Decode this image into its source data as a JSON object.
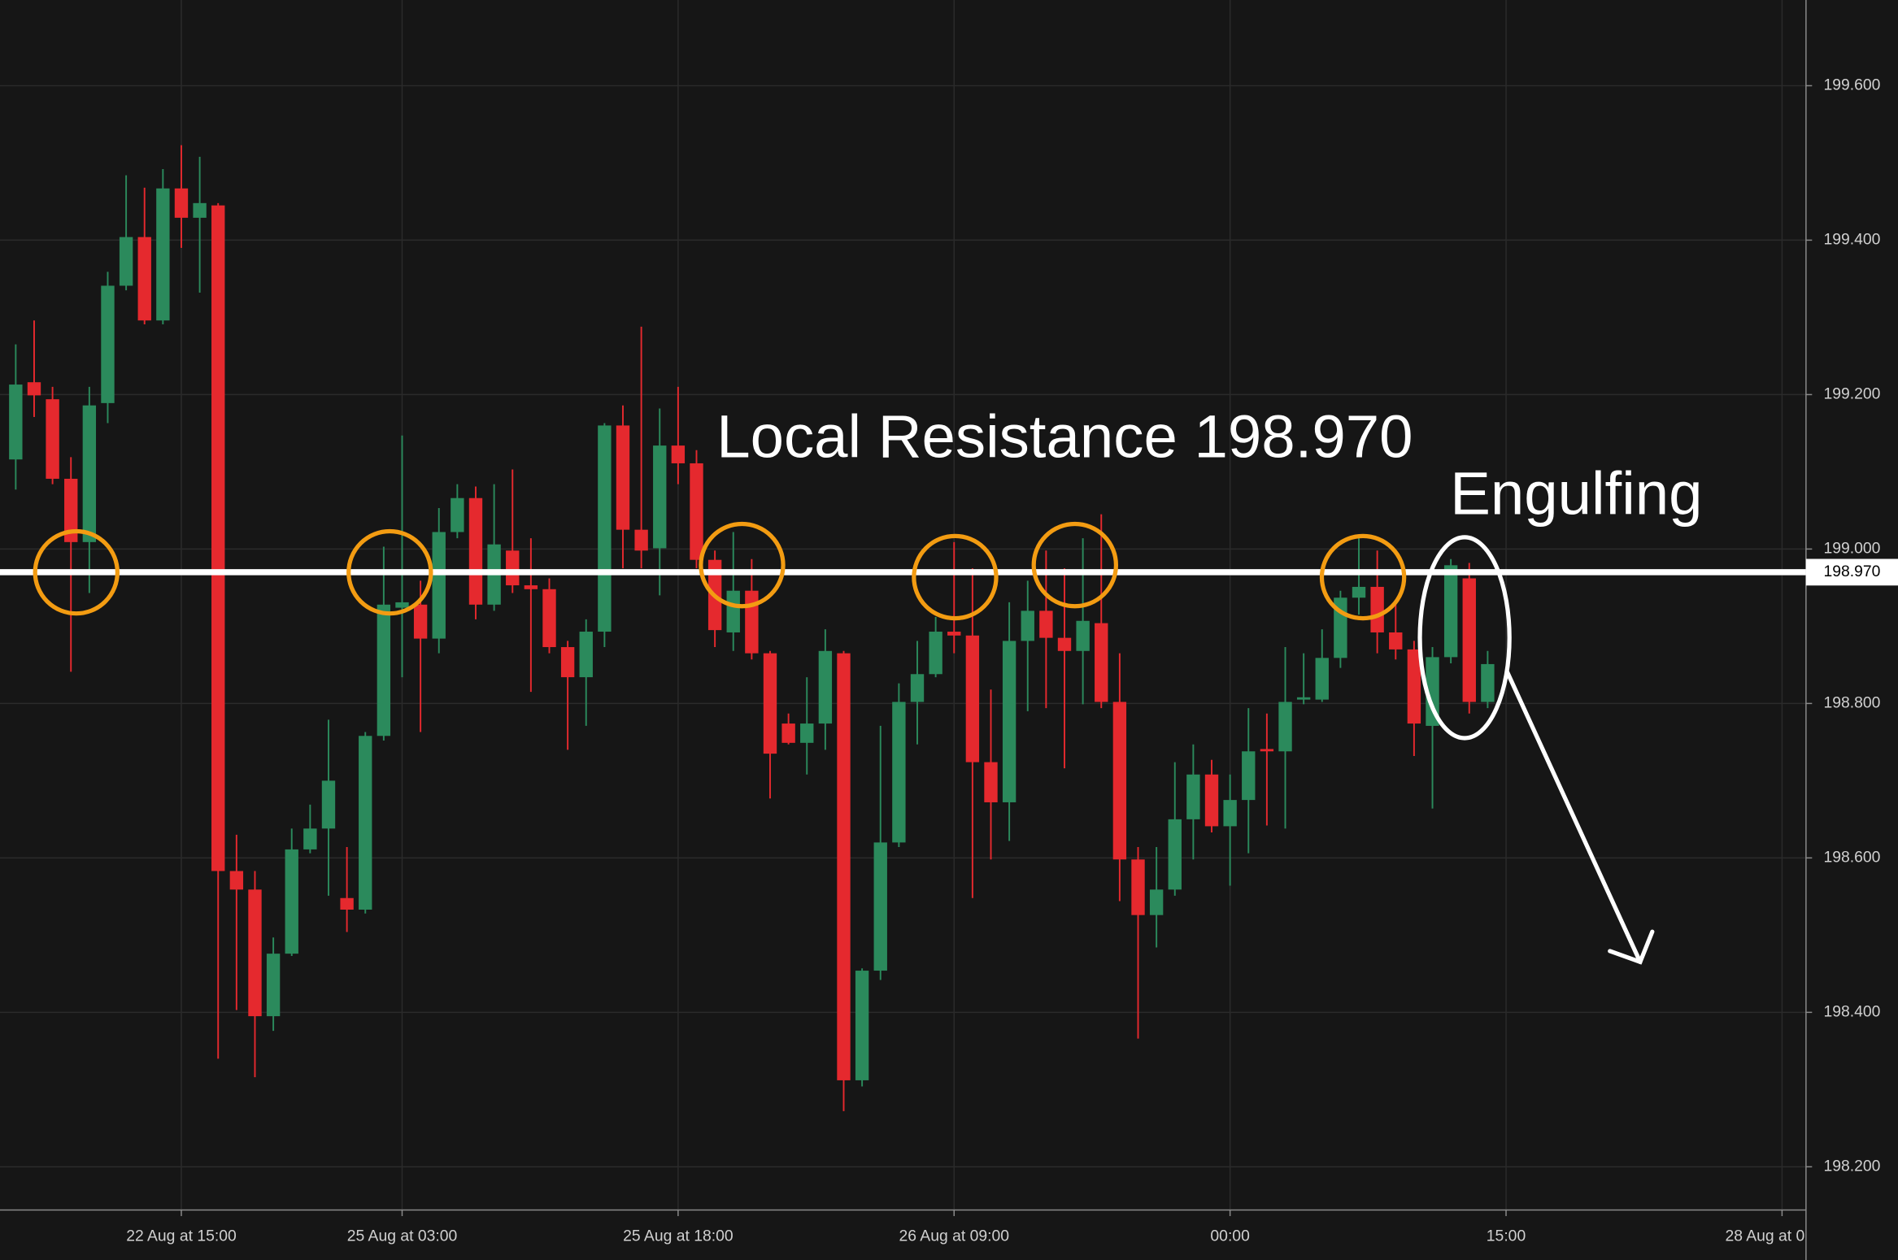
{
  "chart_data": {
    "type": "candlestick",
    "annotations": [
      "Local Resistance 198.970",
      "Engulfing"
    ],
    "hline": {
      "value": 198.97,
      "label": "198.970"
    },
    "up_color": "#2b8a5c",
    "down_color": "#e5292e",
    "grid": true,
    "ylim": [
      198.144,
      199.711
    ],
    "yticks": [
      {
        "value": 198.2,
        "label": "198.200"
      },
      {
        "value": 198.4,
        "label": "198.400"
      },
      {
        "value": 198.6,
        "label": "198.600"
      },
      {
        "value": 198.8,
        "label": "198.800"
      },
      {
        "value": 199.0,
        "label": "199.000"
      },
      {
        "value": 199.2,
        "label": "199.200"
      },
      {
        "value": 199.4,
        "label": "199.400"
      },
      {
        "value": 199.6,
        "label": "199.600"
      }
    ],
    "categories": [
      null,
      null,
      null,
      null,
      null,
      null,
      null,
      null,
      null,
      "22 Aug at 15:00",
      null,
      null,
      null,
      null,
      null,
      null,
      null,
      null,
      null,
      null,
      null,
      "25 Aug at 03:00",
      null,
      null,
      null,
      null,
      null,
      null,
      null,
      null,
      null,
      null,
      null,
      null,
      null,
      null,
      "25 Aug at 18:00",
      null,
      null,
      null,
      null,
      null,
      null,
      null,
      null,
      null,
      null,
      null,
      null,
      null,
      null,
      "26 Aug at 09:00",
      null,
      null,
      null,
      null,
      null,
      null,
      null,
      null,
      null,
      null,
      null,
      null,
      null,
      null,
      "00:00",
      null,
      null,
      null,
      null,
      null,
      null,
      null,
      null,
      null,
      null,
      null,
      null,
      null,
      null,
      "15:00",
      null,
      null,
      null,
      null,
      null,
      null,
      null,
      null,
      null,
      null,
      null,
      null,
      null,
      null,
      "28 Aug at 0"
    ],
    "open": [
      199.116,
      199.216,
      199.194,
      199.091,
      199.009,
      199.189,
      199.341,
      199.404,
      199.296,
      199.467,
      199.429,
      199.445,
      198.583,
      198.559,
      198.395,
      198.476,
      198.611,
      198.638,
      198.548,
      198.533,
      198.758,
      198.924,
      198.928,
      198.884,
      199.022,
      199.066,
      198.928,
      198.998,
      198.953,
      198.948,
      198.873,
      198.834,
      198.893,
      199.16,
      199.025,
      199.001,
      199.134,
      199.111,
      198.986,
      198.892,
      198.946,
      198.865,
      198.774,
      198.749,
      198.774,
      198.865,
      198.312,
      198.454,
      198.62,
      198.802,
      198.838,
      198.893,
      198.888,
      198.724,
      198.672,
      198.881,
      198.92,
      198.885,
      198.868,
      198.904,
      198.802,
      198.598,
      198.526,
      198.559,
      198.65,
      198.708,
      198.641,
      198.675,
      198.741,
      198.738,
      198.805,
      198.805,
      198.859,
      198.937,
      198.951,
      198.892,
      198.87,
      198.771,
      198.86,
      198.962,
      198.802,
      null,
      null,
      null,
      null,
      null,
      null,
      null,
      null,
      null,
      null,
      null,
      null,
      null,
      null,
      null,
      null
    ],
    "high": [
      199.265,
      199.296,
      199.21,
      199.119,
      199.21,
      199.359,
      199.484,
      199.468,
      199.492,
      199.523,
      199.508,
      199.448,
      198.63,
      198.583,
      198.497,
      198.638,
      198.669,
      198.779,
      198.614,
      198.763,
      199.003,
      199.147,
      198.959,
      199.053,
      199.084,
      199.081,
      199.084,
      199.103,
      199.014,
      198.962,
      198.881,
      198.909,
      199.163,
      199.186,
      199.288,
      199.182,
      199.21,
      199.128,
      198.998,
      199.022,
      198.987,
      198.868,
      198.787,
      198.834,
      198.896,
      198.868,
      198.457,
      198.771,
      198.826,
      198.881,
      198.912,
      199.009,
      198.975,
      198.818,
      198.931,
      198.959,
      198.998,
      198.975,
      199.014,
      199.045,
      198.865,
      198.614,
      198.614,
      198.724,
      198.747,
      198.727,
      198.708,
      198.794,
      198.787,
      198.873,
      198.865,
      198.896,
      198.946,
      199.014,
      198.998,
      198.928,
      198.881,
      198.873,
      198.987,
      198.982,
      198.868,
      null,
      null,
      null,
      null,
      null,
      null,
      null,
      null,
      null,
      null,
      null,
      null,
      null,
      null,
      null,
      null
    ],
    "low": [
      199.077,
      199.171,
      199.084,
      198.841,
      198.943,
      199.163,
      199.335,
      199.291,
      199.291,
      199.39,
      199.332,
      198.34,
      198.403,
      198.316,
      198.376,
      198.473,
      198.606,
      198.551,
      198.504,
      198.528,
      198.752,
      198.834,
      198.763,
      198.865,
      199.014,
      198.909,
      198.92,
      198.943,
      198.815,
      198.865,
      198.74,
      198.771,
      198.873,
      198.975,
      198.975,
      198.94,
      199.084,
      198.975,
      198.873,
      198.868,
      198.857,
      198.677,
      198.747,
      198.708,
      198.74,
      198.272,
      198.304,
      198.442,
      198.614,
      198.747,
      198.834,
      198.865,
      198.548,
      198.598,
      198.622,
      198.79,
      198.794,
      198.716,
      198.799,
      198.794,
      198.544,
      198.366,
      198.484,
      198.551,
      198.598,
      198.633,
      198.564,
      198.606,
      198.642,
      198.638,
      198.799,
      198.802,
      198.846,
      198.915,
      198.865,
      198.857,
      198.732,
      198.664,
      198.852,
      198.787,
      198.794,
      null,
      null,
      null,
      null,
      null,
      null,
      null,
      null,
      null,
      null,
      null,
      null,
      null,
      null,
      null,
      null
    ],
    "close": [
      199.213,
      199.199,
      199.091,
      199.009,
      199.186,
      199.341,
      199.404,
      199.296,
      199.467,
      199.429,
      199.448,
      198.583,
      198.559,
      198.395,
      198.476,
      198.611,
      198.638,
      198.7,
      198.533,
      198.758,
      198.928,
      198.931,
      198.884,
      199.022,
      199.066,
      198.928,
      199.006,
      198.953,
      198.948,
      198.873,
      198.834,
      198.893,
      199.16,
      199.025,
      198.998,
      199.134,
      199.111,
      198.986,
      198.895,
      198.946,
      198.865,
      198.735,
      198.749,
      198.774,
      198.868,
      198.312,
      198.454,
      198.62,
      198.802,
      198.838,
      198.893,
      198.888,
      198.724,
      198.672,
      198.881,
      198.92,
      198.885,
      198.868,
      198.907,
      198.802,
      198.598,
      198.526,
      198.559,
      198.65,
      198.708,
      198.641,
      198.675,
      198.738,
      198.738,
      198.802,
      198.808,
      198.859,
      198.937,
      198.951,
      198.892,
      198.87,
      198.774,
      198.86,
      198.979,
      198.802,
      198.851,
      null,
      null,
      null,
      null,
      null,
      null,
      null,
      null,
      null,
      null,
      null,
      null,
      null,
      null,
      null,
      null
    ]
  }
}
